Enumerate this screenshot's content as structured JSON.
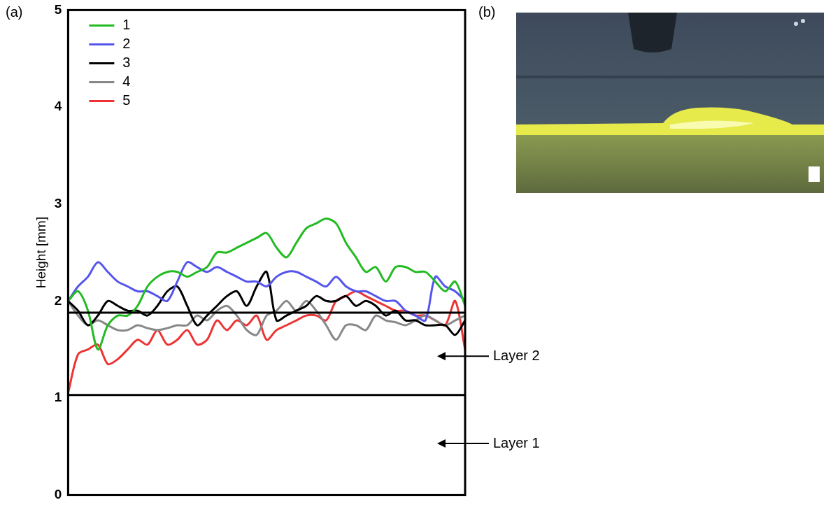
{
  "panel_labels": [
    "(a)",
    "(b)"
  ],
  "chart_data": {
    "type": "line",
    "y_label": "Height [mm]",
    "x": [
      0,
      1,
      2,
      3,
      4,
      5,
      6,
      7,
      8,
      9,
      10,
      11,
      12,
      13,
      14,
      15,
      16,
      17,
      18,
      19,
      20,
      21,
      22,
      23,
      24,
      25,
      26,
      27,
      28,
      29,
      30,
      31,
      32,
      33,
      34,
      35,
      36,
      37,
      38,
      39,
      40
    ],
    "xlim": [
      0,
      40
    ],
    "ylim": [
      0,
      5
    ],
    "yticks": [
      0,
      1,
      2,
      3,
      4,
      5
    ],
    "grid": false,
    "legend": "upper left",
    "tick_labels": "y",
    "series": [
      {
        "name": "1",
        "color": "#22bb22",
        "values": [
          2.0,
          2.1,
          1.9,
          1.5,
          1.75,
          1.85,
          1.85,
          1.95,
          2.15,
          2.25,
          2.3,
          2.3,
          2.25,
          2.3,
          2.35,
          2.5,
          2.5,
          2.55,
          2.6,
          2.65,
          2.7,
          2.55,
          2.45,
          2.6,
          2.75,
          2.8,
          2.85,
          2.8,
          2.6,
          2.45,
          2.3,
          2.35,
          2.2,
          2.35,
          2.35,
          2.3,
          2.3,
          2.2,
          2.1,
          2.2,
          1.95
        ]
      },
      {
        "name": "2",
        "color": "#5555ee",
        "values": [
          2.0,
          2.15,
          2.25,
          2.4,
          2.3,
          2.2,
          2.15,
          2.1,
          2.1,
          2.05,
          2.0,
          2.2,
          2.4,
          2.35,
          2.3,
          2.35,
          2.3,
          2.25,
          2.2,
          2.2,
          2.15,
          2.25,
          2.3,
          2.3,
          2.25,
          2.2,
          2.15,
          2.25,
          2.15,
          2.1,
          2.1,
          2.05,
          2.0,
          2.0,
          1.9,
          1.85,
          1.8,
          2.25,
          2.15,
          2.1,
          2.0
        ]
      },
      {
        "name": "3",
        "color": "#000000",
        "values": [
          2.0,
          1.9,
          1.75,
          1.85,
          2.0,
          1.95,
          1.9,
          1.9,
          1.85,
          1.95,
          2.1,
          2.15,
          1.95,
          1.75,
          1.85,
          1.95,
          2.05,
          2.1,
          1.95,
          2.15,
          2.3,
          1.8,
          1.85,
          1.9,
          1.95,
          2.05,
          2.0,
          2.0,
          2.05,
          1.95,
          2.0,
          1.95,
          1.85,
          1.9,
          1.8,
          1.8,
          1.75,
          1.75,
          1.75,
          1.65,
          1.8
        ]
      },
      {
        "name": "4",
        "color": "#888888",
        "values": [
          2.0,
          1.85,
          1.75,
          1.8,
          1.75,
          1.7,
          1.7,
          1.75,
          1.72,
          1.7,
          1.72,
          1.75,
          1.75,
          1.85,
          1.8,
          1.9,
          1.95,
          1.85,
          1.7,
          1.65,
          1.85,
          1.9,
          2.0,
          1.9,
          2.0,
          1.9,
          1.75,
          1.6,
          1.75,
          1.75,
          1.7,
          1.85,
          1.8,
          1.78,
          1.75,
          1.8,
          1.85,
          1.8,
          1.75,
          1.8,
          1.85
        ]
      },
      {
        "name": "5",
        "color": "#ee3333",
        "values": [
          1.05,
          1.45,
          1.5,
          1.55,
          1.35,
          1.4,
          1.5,
          1.6,
          1.55,
          1.7,
          1.55,
          1.6,
          1.7,
          1.55,
          1.6,
          1.8,
          1.7,
          1.8,
          1.75,
          1.85,
          1.6,
          1.7,
          1.75,
          1.8,
          1.85,
          1.85,
          1.8,
          2.0,
          2.05,
          2.1,
          2.05,
          2.0,
          1.95,
          1.9,
          1.9,
          1.85,
          1.85,
          1.8,
          1.75,
          2.0,
          1.5
        ]
      }
    ],
    "layer_boundaries": [
      1.03,
      1.88
    ],
    "annotations": [
      {
        "text": "Layer 2",
        "y": 1.43
      },
      {
        "text": "Layer 1",
        "y": 0.53
      }
    ]
  }
}
